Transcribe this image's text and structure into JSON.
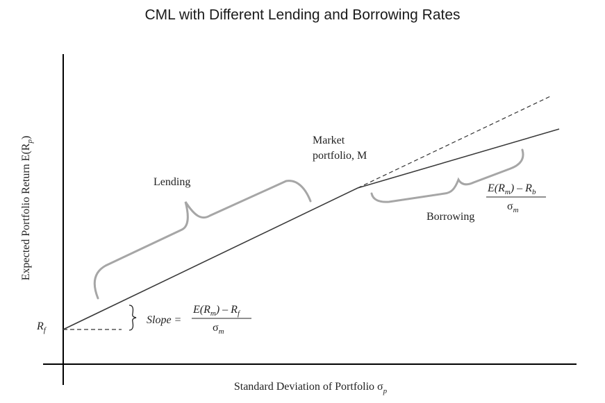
{
  "title": "CML with Different Lending and Borrowing Rates",
  "axes": {
    "x_label": "Standard Deviation of Portfolio σ",
    "x_label_sub": "p",
    "y_label": "Expected Portfolio Return E(R",
    "y_label_sub": "p",
    "y_label_close": ")",
    "rf_label": "R",
    "rf_label_sub": "f"
  },
  "labels": {
    "lending": "Lending",
    "borrowing": "Borrowing",
    "market_line1": "Market",
    "market_line2": "portfolio, M"
  },
  "slope": {
    "word": "Slope =",
    "num_main": "E(R",
    "num_sub_m": "m",
    "num_rest": ") – R",
    "num_sub_f": "f",
    "den": "σ",
    "den_sub": "m"
  },
  "borrow_slope": {
    "num_main": "E(R",
    "num_sub_m": "m",
    "num_rest": ") – R",
    "num_sub_b": "b",
    "den": "σ",
    "den_sub": "m"
  },
  "colors": {
    "line": "#3a3a3a",
    "brace": "#a6a6a6",
    "axis": "#000000"
  }
}
